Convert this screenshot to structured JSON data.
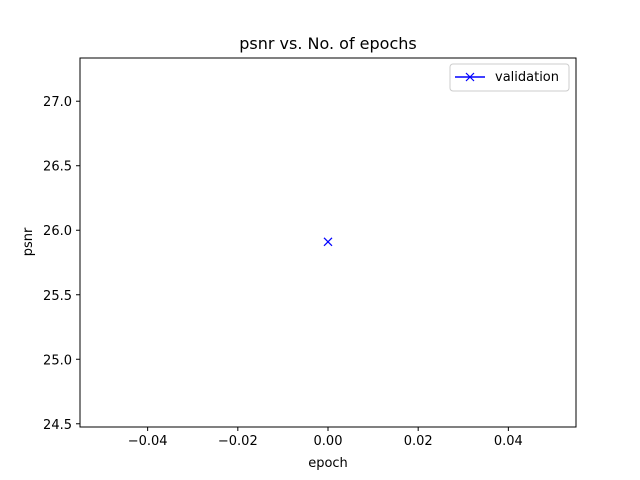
{
  "chart_data": {
    "type": "line",
    "title": "psnr vs. No. of epochs",
    "xlabel": "epoch",
    "ylabel": "psnr",
    "xlim": [
      -0.055,
      0.055
    ],
    "ylim": [
      24.475,
      27.335
    ],
    "xticks": [
      -0.04,
      -0.02,
      0.0,
      0.02,
      0.04
    ],
    "xtick_labels": [
      "−0.04",
      "−0.02",
      "0.00",
      "0.02",
      "0.04"
    ],
    "yticks": [
      24.5,
      25.0,
      25.5,
      26.0,
      26.5,
      27.0
    ],
    "ytick_labels": [
      "24.5",
      "25.0",
      "25.5",
      "26.0",
      "26.5",
      "27.0"
    ],
    "grid": false,
    "legend_position": "top-right",
    "series": [
      {
        "name": "validation",
        "color": "#0000ff",
        "marker": "x",
        "x": [
          0
        ],
        "y": [
          25.91
        ]
      }
    ]
  }
}
